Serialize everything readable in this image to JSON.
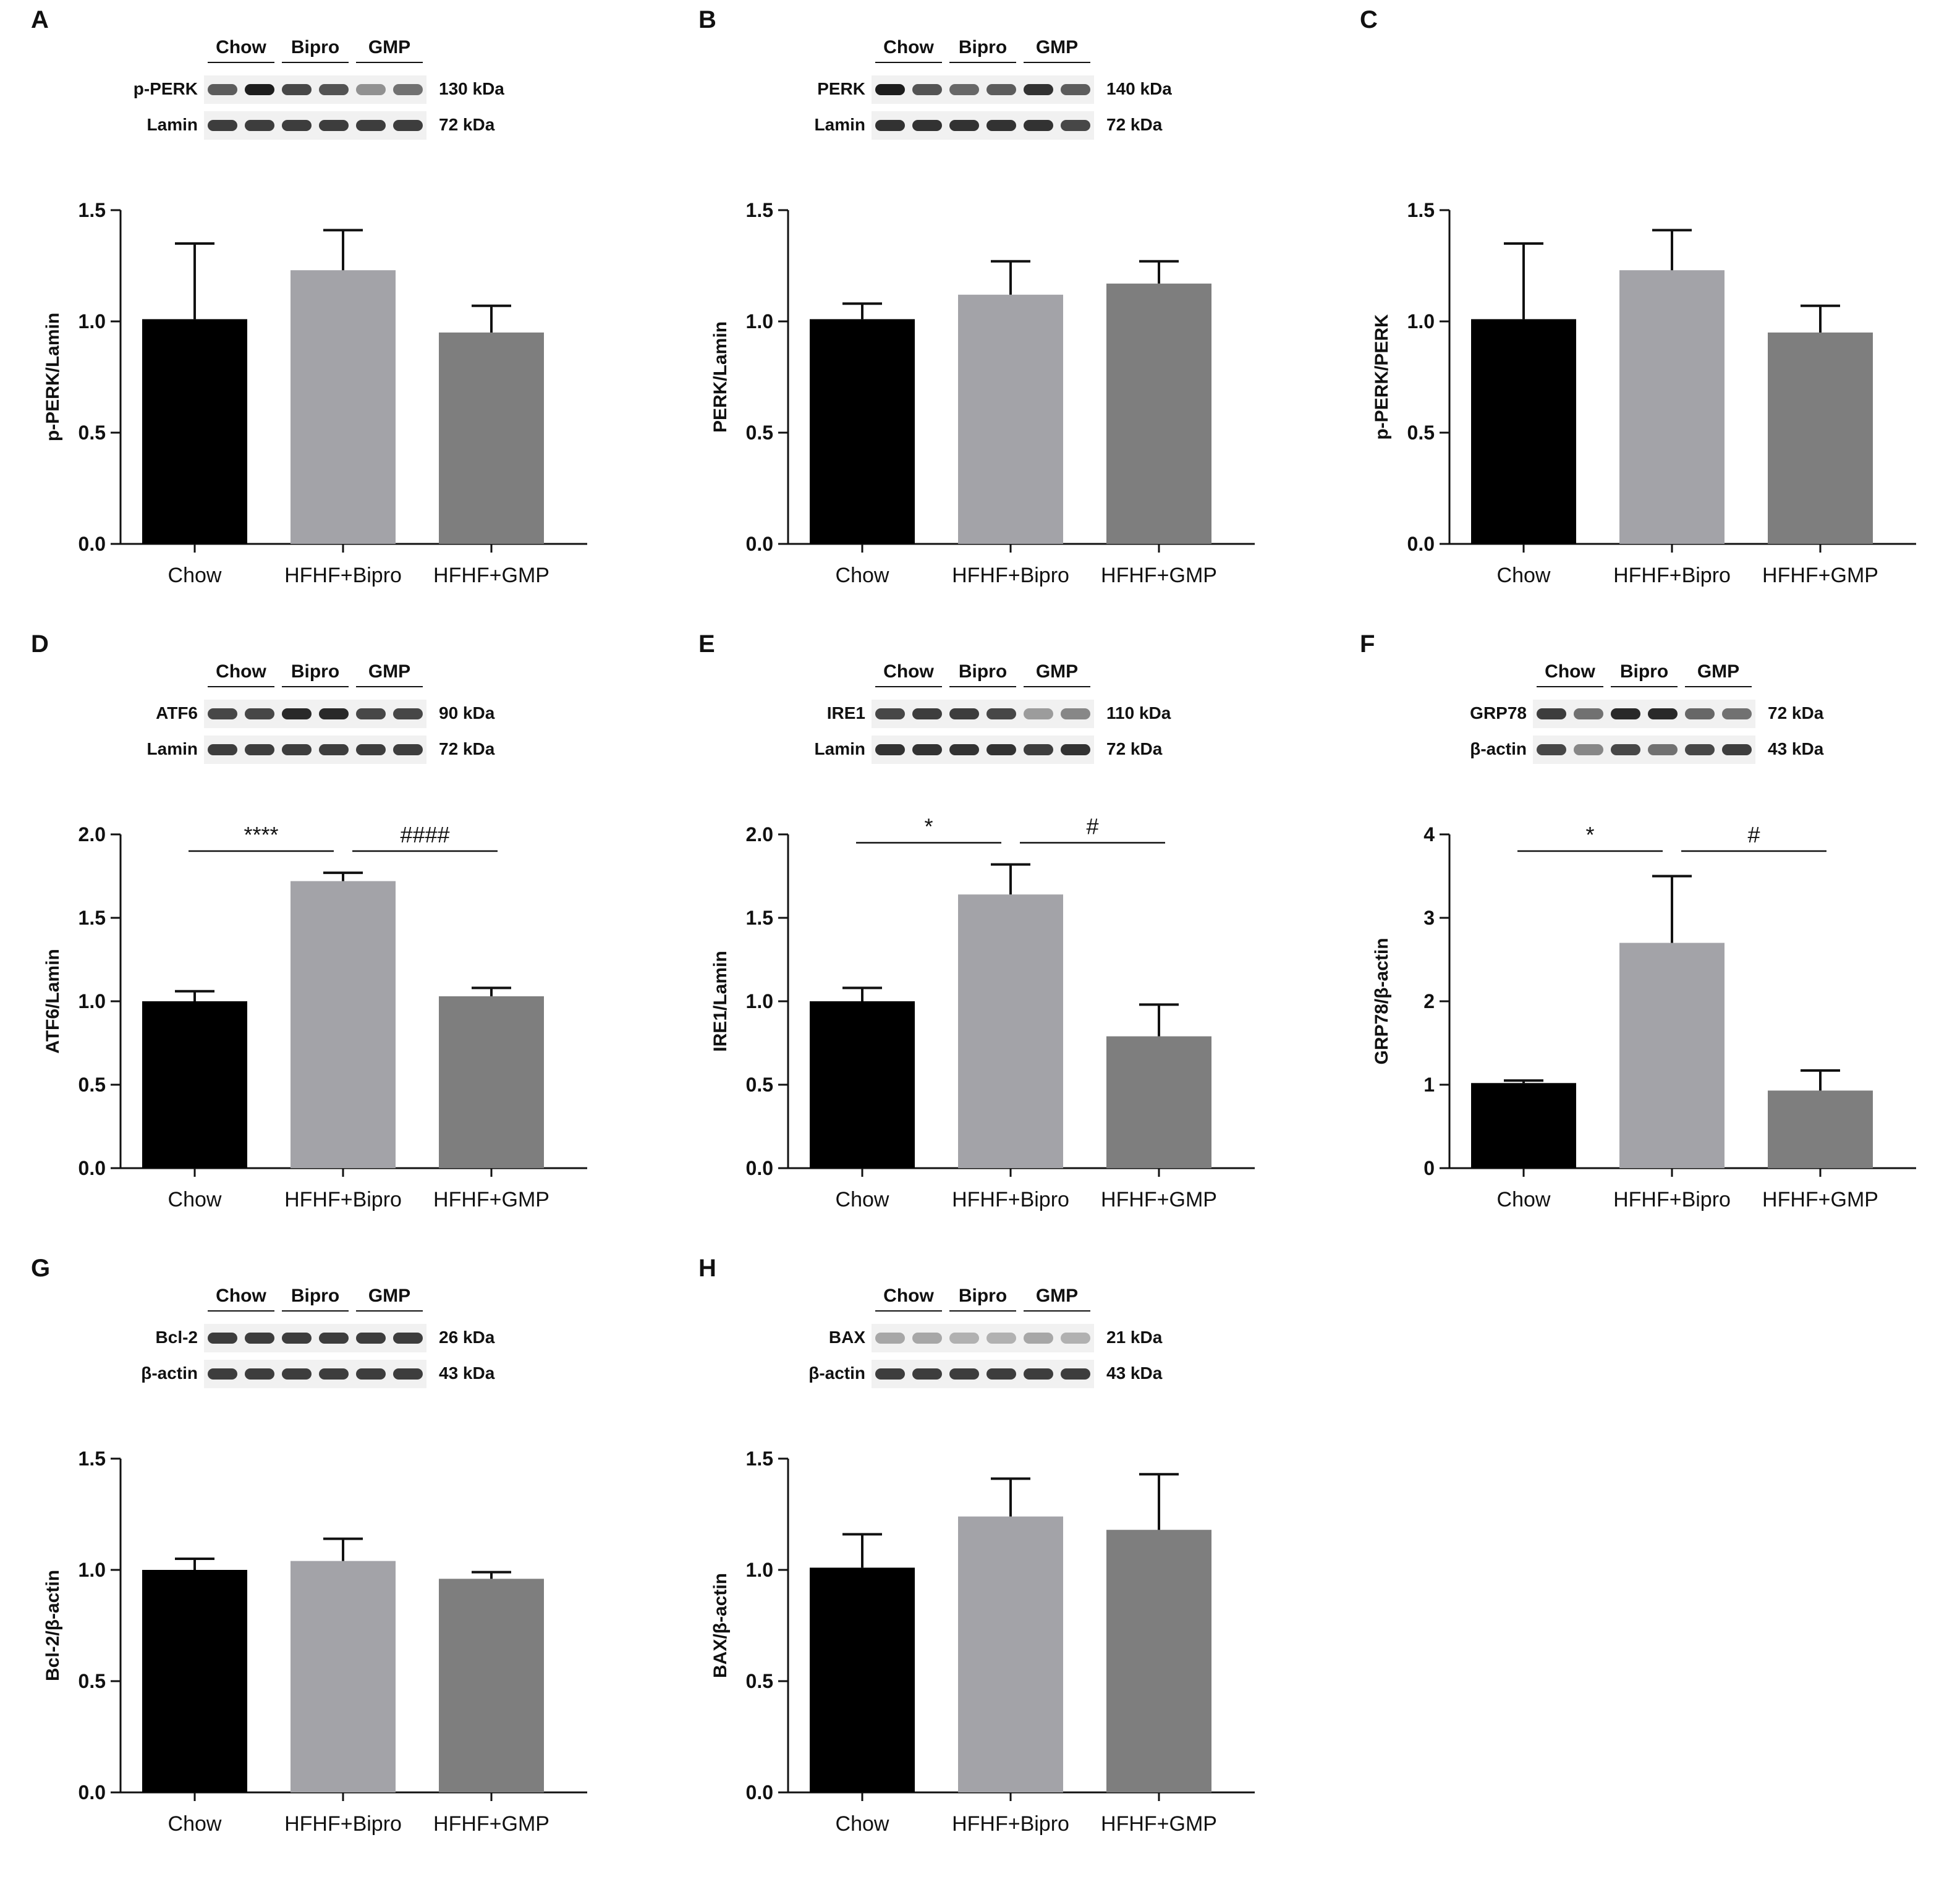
{
  "colors": {
    "chow": "#000000",
    "bipro": "#a3a3a8",
    "gmp": "#7e7e7e",
    "band": "#1d1d1d"
  },
  "blot_groups": [
    "Chow",
    "Bipro",
    "GMP"
  ],
  "chart_data": [
    {
      "id": "A",
      "type": "bar",
      "ylabel": "p-PERK/Lamin",
      "categories": [
        "Chow",
        "HFHF+Bipro",
        "HFHF+GMP"
      ],
      "values": [
        1.01,
        1.23,
        0.95
      ],
      "errors": [
        0.34,
        0.18,
        0.12
      ],
      "ylim": [
        0,
        1.5
      ],
      "yticks": [
        0.0,
        0.5,
        1.0,
        1.5
      ],
      "tick_decimals": 1,
      "blot": {
        "rows": [
          {
            "label": "p-PERK",
            "kda": "130 kDa",
            "intensity": [
              0.7,
              1.0,
              0.8,
              0.75,
              0.45,
              0.6
            ]
          },
          {
            "label": "Lamin",
            "kda": "72 kDa",
            "intensity": [
              0.85,
              0.85,
              0.85,
              0.85,
              0.85,
              0.85
            ]
          }
        ]
      },
      "significance": []
    },
    {
      "id": "B",
      "type": "bar",
      "ylabel": "PERK/Lamin",
      "categories": [
        "Chow",
        "HFHF+Bipro",
        "HFHF+GMP"
      ],
      "values": [
        1.01,
        1.12,
        1.17
      ],
      "errors": [
        0.07,
        0.15,
        0.1
      ],
      "ylim": [
        0,
        1.5
      ],
      "yticks": [
        0.0,
        0.5,
        1.0,
        1.5
      ],
      "tick_decimals": 1,
      "blot": {
        "rows": [
          {
            "label": "PERK",
            "kda": "140 kDa",
            "intensity": [
              1.0,
              0.75,
              0.65,
              0.7,
              0.9,
              0.7
            ]
          },
          {
            "label": "Lamin",
            "kda": "72 kDa",
            "intensity": [
              0.9,
              0.9,
              0.9,
              0.9,
              0.9,
              0.8
            ]
          }
        ]
      },
      "significance": []
    },
    {
      "id": "C",
      "type": "bar",
      "ylabel": "p-PERK/PERK",
      "categories": [
        "Chow",
        "HFHF+Bipro",
        "HFHF+GMP"
      ],
      "values": [
        1.01,
        1.23,
        0.95
      ],
      "errors": [
        0.34,
        0.18,
        0.12
      ],
      "ylim": [
        0,
        1.5
      ],
      "yticks": [
        0.0,
        0.5,
        1.0,
        1.5
      ],
      "tick_decimals": 1,
      "blot": null,
      "significance": []
    },
    {
      "id": "D",
      "type": "bar",
      "ylabel": "ATF6/Lamin",
      "categories": [
        "Chow",
        "HFHF+Bipro",
        "HFHF+GMP"
      ],
      "values": [
        1.0,
        1.72,
        1.03
      ],
      "errors": [
        0.06,
        0.05,
        0.05
      ],
      "ylim": [
        0,
        2.0
      ],
      "yticks": [
        0.0,
        0.5,
        1.0,
        1.5,
        2.0
      ],
      "tick_decimals": 1,
      "blot": {
        "rows": [
          {
            "label": "ATF6",
            "kda": "90 kDa",
            "intensity": [
              0.8,
              0.8,
              0.95,
              0.95,
              0.8,
              0.8
            ]
          },
          {
            "label": "Lamin",
            "kda": "72 kDa",
            "intensity": [
              0.85,
              0.85,
              0.85,
              0.85,
              0.85,
              0.85
            ]
          }
        ]
      },
      "significance": [
        {
          "from": 0,
          "to": 1,
          "label": "****",
          "y": 1.9
        },
        {
          "from": 1,
          "to": 2,
          "label": "####",
          "y": 1.9
        }
      ]
    },
    {
      "id": "E",
      "type": "bar",
      "ylabel": "IRE1/Lamin",
      "categories": [
        "Chow",
        "HFHF+Bipro",
        "HFHF+GMP"
      ],
      "values": [
        1.0,
        1.64,
        0.79
      ],
      "errors": [
        0.08,
        0.18,
        0.19
      ],
      "ylim": [
        0,
        2.0
      ],
      "yticks": [
        0.0,
        0.5,
        1.0,
        1.5,
        2.0
      ],
      "tick_decimals": 1,
      "blot": {
        "rows": [
          {
            "label": "IRE1",
            "kda": "110 kDa",
            "intensity": [
              0.8,
              0.85,
              0.85,
              0.8,
              0.4,
              0.5
            ]
          },
          {
            "label": "Lamin",
            "kda": "72 kDa",
            "intensity": [
              0.9,
              0.9,
              0.9,
              0.9,
              0.85,
              0.9
            ]
          }
        ]
      },
      "significance": [
        {
          "from": 0,
          "to": 1,
          "label": "*",
          "y": 1.95
        },
        {
          "from": 1,
          "to": 2,
          "label": "#",
          "y": 1.95
        }
      ]
    },
    {
      "id": "F",
      "type": "bar",
      "ylabel": "GRP78/β-actin",
      "categories": [
        "Chow",
        "HFHF+Bipro",
        "HFHF+GMP"
      ],
      "values": [
        1.02,
        2.7,
        0.93
      ],
      "errors": [
        0.03,
        0.8,
        0.24
      ],
      "ylim": [
        0,
        4
      ],
      "yticks": [
        0,
        1,
        2,
        3,
        4
      ],
      "tick_decimals": 0,
      "blot": {
        "rows": [
          {
            "label": "GRP78",
            "kda": "72 kDa",
            "intensity": [
              0.85,
              0.6,
              0.95,
              0.95,
              0.65,
              0.6
            ]
          },
          {
            "label": "β-actin",
            "kda": "43 kDa",
            "intensity": [
              0.8,
              0.5,
              0.8,
              0.6,
              0.8,
              0.85
            ]
          }
        ]
      },
      "significance": [
        {
          "from": 0,
          "to": 1,
          "label": "*",
          "y": 3.8
        },
        {
          "from": 1,
          "to": 2,
          "label": "#",
          "y": 3.8
        }
      ]
    },
    {
      "id": "G",
      "type": "bar",
      "ylabel": "Bcl-2/β-actin",
      "categories": [
        "Chow",
        "HFHF+Bipro",
        "HFHF+GMP"
      ],
      "values": [
        1.0,
        1.04,
        0.96
      ],
      "errors": [
        0.05,
        0.1,
        0.03
      ],
      "ylim": [
        0,
        1.5
      ],
      "yticks": [
        0.0,
        0.5,
        1.0,
        1.5
      ],
      "tick_decimals": 1,
      "blot": {
        "rows": [
          {
            "label": "Bcl-2",
            "kda": "26 kDa",
            "intensity": [
              0.85,
              0.85,
              0.85,
              0.85,
              0.85,
              0.85
            ]
          },
          {
            "label": "β-actin",
            "kda": "43 kDa",
            "intensity": [
              0.85,
              0.85,
              0.85,
              0.85,
              0.85,
              0.85
            ]
          }
        ]
      },
      "significance": []
    },
    {
      "id": "H",
      "type": "bar",
      "ylabel": "BAX/β-actin",
      "categories": [
        "Chow",
        "HFHF+Bipro",
        "HFHF+GMP"
      ],
      "values": [
        1.01,
        1.24,
        1.18
      ],
      "errors": [
        0.15,
        0.17,
        0.25
      ],
      "ylim": [
        0,
        1.5
      ],
      "yticks": [
        0.0,
        0.5,
        1.0,
        1.5
      ],
      "tick_decimals": 1,
      "blot": {
        "rows": [
          {
            "label": "BAX",
            "kda": "21 kDa",
            "intensity": [
              0.35,
              0.35,
              0.3,
              0.3,
              0.35,
              0.3
            ]
          },
          {
            "label": "β-actin",
            "kda": "43 kDa",
            "intensity": [
              0.85,
              0.85,
              0.85,
              0.85,
              0.85,
              0.85
            ]
          }
        ]
      },
      "significance": []
    }
  ]
}
